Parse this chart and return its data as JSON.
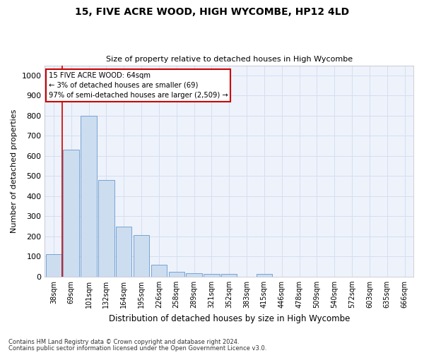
{
  "title1": "15, FIVE ACRE WOOD, HIGH WYCOMBE, HP12 4LD",
  "title2": "Size of property relative to detached houses in High Wycombe",
  "xlabel": "Distribution of detached houses by size in High Wycombe",
  "ylabel": "Number of detached properties",
  "categories": [
    "38sqm",
    "69sqm",
    "101sqm",
    "132sqm",
    "164sqm",
    "195sqm",
    "226sqm",
    "258sqm",
    "289sqm",
    "321sqm",
    "352sqm",
    "383sqm",
    "415sqm",
    "446sqm",
    "478sqm",
    "509sqm",
    "540sqm",
    "572sqm",
    "603sqm",
    "635sqm",
    "666sqm"
  ],
  "values": [
    110,
    630,
    800,
    480,
    250,
    205,
    60,
    25,
    18,
    12,
    12,
    0,
    12,
    0,
    0,
    0,
    0,
    0,
    0,
    0,
    0
  ],
  "bar_color": "#ccddf0",
  "bar_edge_color": "#6699cc",
  "annotation_text": "15 FIVE ACRE WOOD: 64sqm\n← 3% of detached houses are smaller (69)\n97% of semi-detached houses are larger (2,509) →",
  "annotation_box_color": "#ffffff",
  "annotation_box_edge_color": "#cc0000",
  "vline_color": "#cc0000",
  "vline_x": 0.575,
  "ylim": [
    0,
    1050
  ],
  "yticks": [
    0,
    100,
    200,
    300,
    400,
    500,
    600,
    700,
    800,
    900,
    1000
  ],
  "footer1": "Contains HM Land Registry data © Crown copyright and database right 2024.",
  "footer2": "Contains public sector information licensed under the Open Government Licence v3.0.",
  "grid_color": "#d5dff0",
  "background_color": "#eef2fb"
}
